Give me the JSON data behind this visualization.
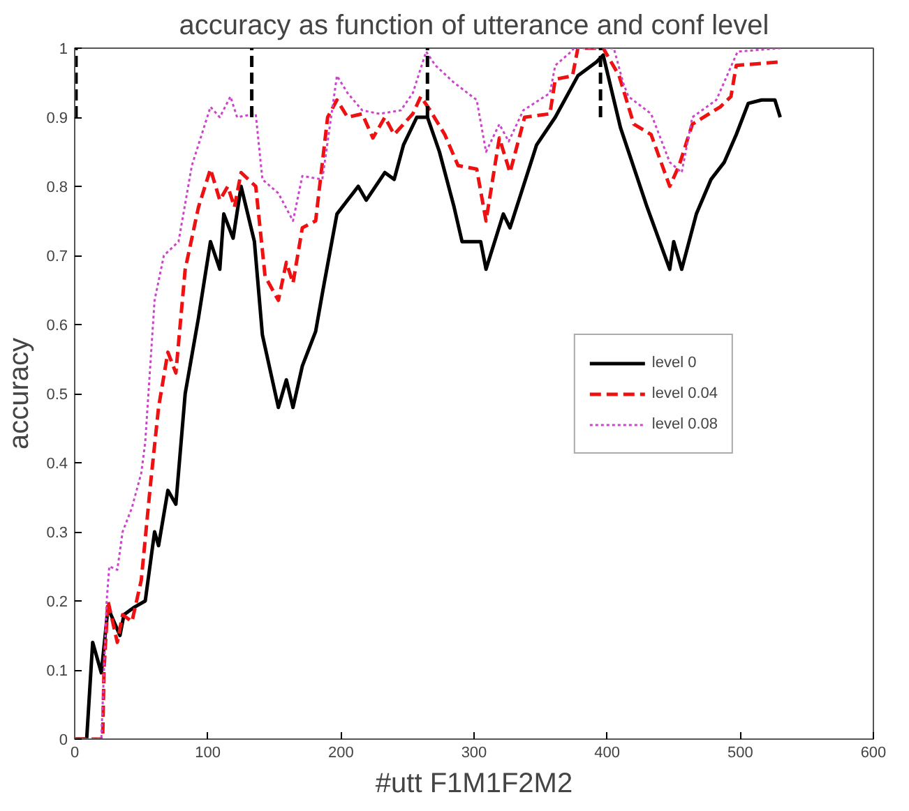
{
  "chart_data": {
    "type": "line",
    "title": "accuracy as function of utterance and conf level",
    "xlabel": "#utt F1M1F2M2",
    "ylabel": "accuracy",
    "xlim": [
      0,
      600
    ],
    "ylim": [
      0,
      1
    ],
    "xticks": [
      0,
      100,
      200,
      300,
      400,
      500,
      600
    ],
    "yticks": [
      0,
      0.1,
      0.2,
      0.3,
      0.4,
      0.5,
      0.6,
      0.7,
      0.8,
      0.9,
      1
    ],
    "legend": "right",
    "grid": false,
    "series": [
      {
        "name": "level 0",
        "color": "#000000",
        "line_style": "solid",
        "x": [
          0,
          9,
          13.5,
          20,
          25,
          34,
          37,
          44,
          53,
          60,
          63,
          70,
          76,
          83,
          93,
          102,
          109,
          112,
          119,
          125,
          135,
          141,
          153,
          159,
          164,
          171,
          181,
          186.5,
          197,
          205,
          213,
          219,
          233,
          240,
          247,
          257,
          265,
          274,
          285,
          291,
          305,
          309,
          322,
          327,
          347,
          361,
          378,
          392,
          397,
          410,
          430,
          447,
          450,
          456,
          467,
          478,
          488,
          497,
          506,
          516,
          526,
          530
        ],
        "values": [
          0,
          0,
          0.14,
          0.096,
          0.19,
          0.15,
          0.18,
          0.19,
          0.2,
          0.3,
          0.28,
          0.36,
          0.34,
          0.5,
          0.61,
          0.72,
          0.68,
          0.76,
          0.725,
          0.8,
          0.72,
          0.585,
          0.48,
          0.52,
          0.48,
          0.54,
          0.59,
          0.65,
          0.76,
          0.78,
          0.8,
          0.78,
          0.82,
          0.81,
          0.86,
          0.9,
          0.9,
          0.85,
          0.77,
          0.72,
          0.72,
          0.68,
          0.76,
          0.74,
          0.86,
          0.9,
          0.96,
          0.98,
          0.99,
          0.885,
          0.77,
          0.68,
          0.72,
          0.68,
          0.76,
          0.81,
          0.835,
          0.875,
          0.92,
          0.925,
          0.925,
          0.9
        ]
      },
      {
        "name": "level 0.04",
        "color": "#ee1111",
        "line_style": "dashed",
        "x": [
          0,
          21,
          22,
          25,
          32,
          36,
          43,
          50,
          57,
          63,
          70,
          76,
          83,
          93,
          102,
          109,
          115,
          120,
          125,
          136,
          143,
          153,
          159,
          164,
          171,
          181,
          190,
          197,
          205,
          216,
          224,
          233,
          240,
          254,
          260,
          267,
          278,
          288,
          302,
          309,
          319,
          327,
          338,
          357,
          361,
          374,
          378,
          397,
          409,
          420,
          433,
          447,
          454,
          464,
          485,
          493,
          497,
          530
        ],
        "values": [
          0,
          0,
          0.1,
          0.2,
          0.14,
          0.18,
          0.17,
          0.23,
          0.37,
          0.48,
          0.56,
          0.53,
          0.68,
          0.77,
          0.825,
          0.78,
          0.8,
          0.77,
          0.82,
          0.8,
          0.67,
          0.635,
          0.69,
          0.66,
          0.74,
          0.75,
          0.9,
          0.925,
          0.9,
          0.905,
          0.87,
          0.9,
          0.875,
          0.905,
          0.93,
          0.91,
          0.875,
          0.83,
          0.825,
          0.75,
          0.87,
          0.82,
          0.9,
          0.905,
          0.955,
          0.96,
          1,
          1,
          0.96,
          0.89,
          0.875,
          0.8,
          0.83,
          0.89,
          0.915,
          0.93,
          0.975,
          0.98
        ]
      },
      {
        "name": "level 0.08",
        "color": "#cc44cc",
        "line_style": "dotted",
        "x": [
          0,
          20,
          24,
          26,
          32,
          36,
          43,
          50,
          53,
          60,
          67,
          78,
          88,
          102,
          109,
          117,
          122,
          136,
          141,
          153,
          164,
          171,
          186,
          197,
          205,
          216,
          229,
          245,
          254,
          264,
          271,
          285,
          302,
          309,
          319,
          326,
          337,
          357,
          361,
          373,
          375,
          405,
          412,
          416,
          433,
          447,
          456,
          464,
          482,
          498,
          530
        ],
        "values": [
          0,
          0,
          0.2,
          0.25,
          0.245,
          0.3,
          0.335,
          0.385,
          0.43,
          0.635,
          0.7,
          0.72,
          0.83,
          0.915,
          0.9,
          0.93,
          0.9,
          0.905,
          0.81,
          0.79,
          0.75,
          0.815,
          0.81,
          0.96,
          0.935,
          0.91,
          0.905,
          0.91,
          0.935,
          0.995,
          0.975,
          0.95,
          0.925,
          0.85,
          0.89,
          0.865,
          0.91,
          0.935,
          0.975,
          0.995,
          1,
          1,
          0.95,
          0.93,
          0.905,
          0.835,
          0.82,
          0.9,
          0.925,
          0.995,
          1
        ]
      },
      {
        "color": "#000000",
        "line_style": "dashed",
        "x": [
          1,
          1
        ],
        "values": [
          0.9,
          1
        ]
      },
      {
        "color": "#000000",
        "line_style": "dashed",
        "x": [
          133,
          133
        ],
        "values": [
          0.9,
          1
        ]
      },
      {
        "color": "#000000",
        "line_style": "dashed",
        "x": [
          265,
          265
        ],
        "values": [
          0.9,
          1
        ]
      },
      {
        "color": "#000000",
        "line_style": "dashed",
        "x": [
          395,
          395
        ],
        "values": [
          0.9,
          1
        ]
      }
    ]
  }
}
